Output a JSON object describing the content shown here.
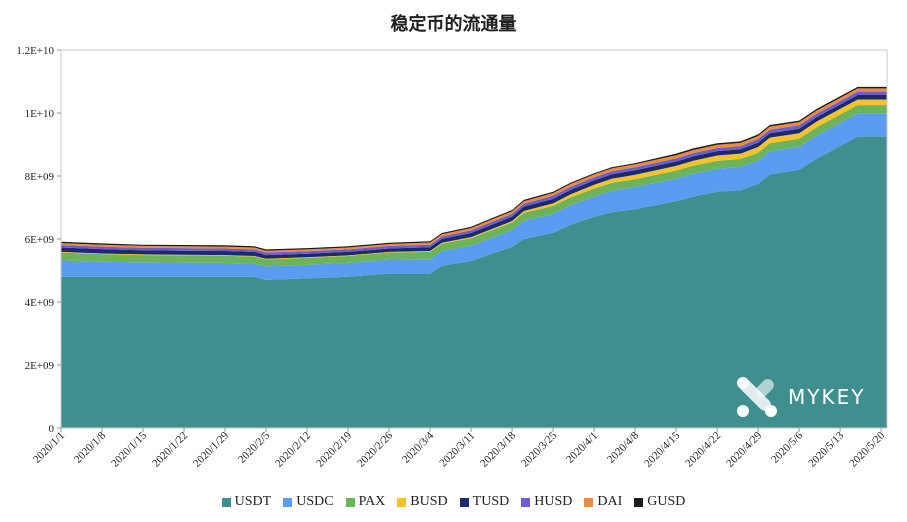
{
  "chart_data": {
    "type": "area",
    "title": "稳定币的流通量",
    "xlabel": "",
    "ylabel": "",
    "ylim": [
      0,
      12000000000
    ],
    "y_ticks": [
      "0",
      "2E+09",
      "4E+09",
      "6E+09",
      "8E+09",
      "1E+10",
      "1.2E+10"
    ],
    "x_ticks": [
      "2020/1/1",
      "2020/1/8",
      "2020/1/15",
      "2020/1/22",
      "2020/1/29",
      "2020/2/5",
      "2020/2/12",
      "2020/2/19",
      "2020/2/26",
      "2020/3/4",
      "2020/3/11",
      "2020/3/18",
      "2020/3/25",
      "2020/4/1",
      "2020/4/8",
      "2020/4/15",
      "2020/4/22",
      "2020/4/29",
      "2020/5/6",
      "2020/5/13",
      "2020/5/20"
    ],
    "grid": false,
    "legend": "bottom",
    "stacked": true,
    "x_range": [
      "2020/1/1",
      "2020/5/21"
    ],
    "x": [
      "2020/1/1",
      "2020/1/8",
      "2020/1/15",
      "2020/1/22",
      "2020/1/29",
      "2020/2/3",
      "2020/2/5",
      "2020/2/12",
      "2020/2/19",
      "2020/2/26",
      "2020/3/4",
      "2020/3/6",
      "2020/3/11",
      "2020/3/14",
      "2020/3/18",
      "2020/3/20",
      "2020/3/25",
      "2020/3/28",
      "2020/4/1",
      "2020/4/4",
      "2020/4/8",
      "2020/4/15",
      "2020/4/18",
      "2020/4/22",
      "2020/4/26",
      "2020/4/29",
      "2020/5/1",
      "2020/5/6",
      "2020/5/9",
      "2020/5/13",
      "2020/5/16",
      "2020/5/21"
    ],
    "series": [
      {
        "name": "USDT",
        "color": "#3f8f8f",
        "values": [
          4800000000.0,
          4800000000.0,
          4800000000.0,
          4800000000.0,
          4800000000.0,
          4800000000.0,
          4700000000.0,
          4750000000.0,
          4800000000.0,
          4900000000.0,
          4900000000.0,
          5150000000.0,
          5300000000.0,
          5500000000.0,
          5750000000.0,
          6000000000.0,
          6200000000.0,
          6450000000.0,
          6700000000.0,
          6850000000.0,
          6950000000.0,
          7200000000.0,
          7350000000.0,
          7500000000.0,
          7550000000.0,
          7750000000.0,
          8050000000.0,
          8200000000.0,
          8550000000.0,
          8950000000.0,
          9250000000.0,
          9250000000.0
        ]
      },
      {
        "name": "USDC",
        "color": "#5a9cf0",
        "values": [
          520000000.0,
          480000000.0,
          460000000.0,
          450000000.0,
          440000000.0,
          420000000.0,
          430000000.0,
          430000000.0,
          440000000.0,
          450000000.0,
          460000000.0,
          470000000.0,
          490000000.0,
          500000000.0,
          530000000.0,
          580000000.0,
          600000000.0,
          630000000.0,
          650000000.0,
          680000000.0,
          700000000.0,
          720000000.0,
          730000000.0,
          730000000.0,
          740000000.0,
          740000000.0,
          740000000.0,
          730000000.0,
          740000000.0,
          740000000.0,
          740000000.0,
          740000000.0
        ]
      },
      {
        "name": "PAX",
        "color": "#6cb35a",
        "values": [
          250000000.0,
          240000000.0,
          230000000.0,
          230000000.0,
          230000000.0,
          220000000.0,
          220000000.0,
          220000000.0,
          220000000.0,
          220000000.0,
          230000000.0,
          230000000.0,
          240000000.0,
          240000000.0,
          240000000.0,
          250000000.0,
          250000000.0,
          240000000.0,
          250000000.0,
          250000000.0,
          250000000.0,
          250000000.0,
          250000000.0,
          250000000.0,
          250000000.0,
          250000000.0,
          250000000.0,
          250000000.0,
          260000000.0,
          260000000.0,
          260000000.0,
          260000000.0
        ]
      },
      {
        "name": "BUSD",
        "color": "#f4c32c",
        "values": [
          20000000.0,
          20000000.0,
          20000000.0,
          20000000.0,
          20000000.0,
          20000000.0,
          20000000.0,
          20000000.0,
          20000000.0,
          20000000.0,
          30000000.0,
          30000000.0,
          30000000.0,
          40000000.0,
          50000000.0,
          60000000.0,
          80000000.0,
          100000000.0,
          120000000.0,
          130000000.0,
          140000000.0,
          150000000.0,
          160000000.0,
          170000000.0,
          170000000.0,
          180000000.0,
          180000000.0,
          180000000.0,
          180000000.0,
          180000000.0,
          180000000.0,
          180000000.0
        ]
      },
      {
        "name": "TUSD",
        "color": "#1a2a6b",
        "values": [
          140000000.0,
          140000000.0,
          130000000.0,
          130000000.0,
          130000000.0,
          130000000.0,
          120000000.0,
          110000000.0,
          110000000.0,
          110000000.0,
          120000000.0,
          120000000.0,
          130000000.0,
          130000000.0,
          140000000.0,
          140000000.0,
          140000000.0,
          140000000.0,
          140000000.0,
          140000000.0,
          140000000.0,
          140000000.0,
          140000000.0,
          140000000.0,
          140000000.0,
          140000000.0,
          140000000.0,
          140000000.0,
          140000000.0,
          140000000.0,
          140000000.0,
          140000000.0
        ]
      },
      {
        "name": "HUSD",
        "color": "#6c5ecf",
        "values": [
          80000000.0,
          80000000.0,
          80000000.0,
          80000000.0,
          80000000.0,
          80000000.0,
          80000000.0,
          80000000.0,
          80000000.0,
          80000000.0,
          80000000.0,
          80000000.0,
          90000000.0,
          90000000.0,
          90000000.0,
          90000000.0,
          100000000.0,
          100000000.0,
          100000000.0,
          100000000.0,
          100000000.0,
          100000000.0,
          100000000.0,
          100000000.0,
          100000000.0,
          110000000.0,
          110000000.0,
          110000000.0,
          110000000.0,
          110000000.0,
          110000000.0,
          110000000.0
        ]
      },
      {
        "name": "DAI",
        "color": "#ef8a3c",
        "values": [
          60000000.0,
          60000000.0,
          60000000.0,
          60000000.0,
          60000000.0,
          60000000.0,
          60000000.0,
          60000000.0,
          60000000.0,
          60000000.0,
          70000000.0,
          70000000.0,
          70000000.0,
          80000000.0,
          80000000.0,
          80000000.0,
          90000000.0,
          90000000.0,
          90000000.0,
          90000000.0,
          90000000.0,
          100000000.0,
          100000000.0,
          100000000.0,
          100000000.0,
          100000000.0,
          100000000.0,
          100000000.0,
          100000000.0,
          100000000.0,
          100000000.0,
          100000000.0
        ]
      },
      {
        "name": "GUSD",
        "color": "#1c1c1c",
        "values": [
          40000000.0,
          40000000.0,
          40000000.0,
          40000000.0,
          40000000.0,
          40000000.0,
          40000000.0,
          40000000.0,
          40000000.0,
          40000000.0,
          40000000.0,
          40000000.0,
          40000000.0,
          40000000.0,
          40000000.0,
          40000000.0,
          40000000.0,
          40000000.0,
          40000000.0,
          40000000.0,
          40000000.0,
          50000000.0,
          50000000.0,
          50000000.0,
          50000000.0,
          50000000.0,
          50000000.0,
          50000000.0,
          50000000.0,
          50000000.0,
          50000000.0,
          50000000.0
        ]
      }
    ]
  },
  "logo": {
    "text": "MYKEY"
  }
}
